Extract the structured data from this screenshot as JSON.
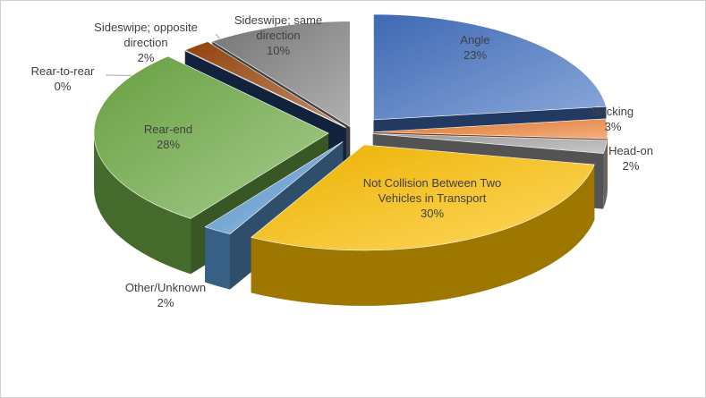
{
  "chart_data": {
    "type": "pie",
    "style": "3d-exploded",
    "title": "",
    "slices": [
      {
        "label": "Angle",
        "value": 23,
        "display": "23%",
        "color": "#4472c4"
      },
      {
        "label": "Backing",
        "value": 3,
        "display": "3%",
        "color": "#ed7d31"
      },
      {
        "label": "Head-on",
        "value": 2,
        "display": "2%",
        "color": "#a5a5a5"
      },
      {
        "label": "Not Collision Between Two Vehicles in Transport",
        "value": 30,
        "display": "30%",
        "color": "#ffc000"
      },
      {
        "label": "Other/Unknown",
        "value": 2,
        "display": "2%",
        "color": "#5b9bd5"
      },
      {
        "label": "Rear-end",
        "value": 28,
        "display": "28%",
        "color": "#70ad47"
      },
      {
        "label": "Rear-to-rear",
        "value": 0,
        "display": "0%",
        "color": "#264478"
      },
      {
        "label": "Sideswipe; opposite direction",
        "value": 2,
        "display": "2%",
        "color": "#9e480e"
      },
      {
        "label": "Sideswipe; same direction",
        "value": 10,
        "display": "10%",
        "color": "#7f7f7f"
      }
    ]
  }
}
